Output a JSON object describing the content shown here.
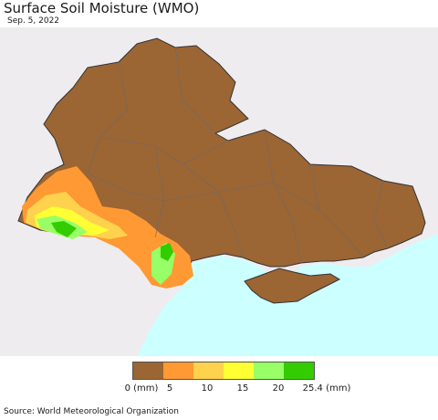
{
  "header": {
    "title": "Surface Soil Moisture (WMO)",
    "date": "Sep. 5, 2022"
  },
  "legend": {
    "ticks": [
      "0 (mm)",
      "5",
      "10",
      "15",
      "20",
      "25.4 (mm)"
    ],
    "colors": [
      "#9b6534",
      "#ff9933",
      "#ffd24d",
      "#ffff33",
      "#99ff66",
      "#33cc00"
    ]
  },
  "map_colors": {
    "sea": "#ccffff",
    "outside": "#efecef",
    "dry": "#9b6534",
    "low": "#ff9933",
    "mid": "#ffd24d",
    "mid_high": "#ffff33",
    "high": "#99ff66",
    "very_high": "#33cc00"
  },
  "footer": {
    "source": "Source: World Meteorological Organization"
  }
}
